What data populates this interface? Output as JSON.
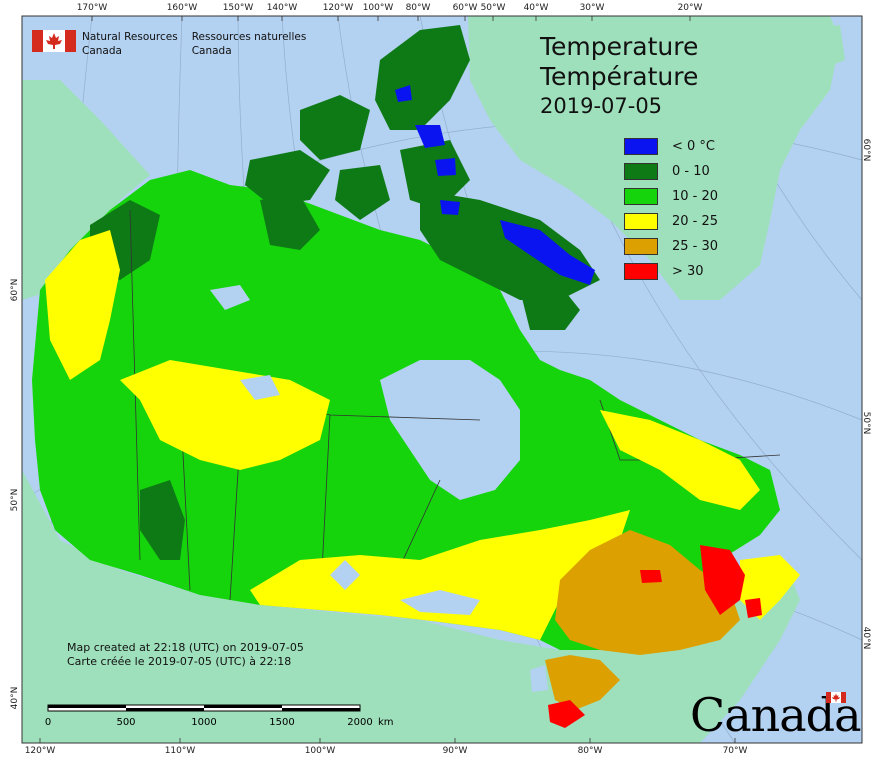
{
  "map": {
    "title_en": "Temperature",
    "title_fr": "Température",
    "date": "2019-07-05",
    "agency": {
      "en_line1": "Natural Resources",
      "en_line2": "Canada",
      "fr_line1": "Ressources naturelles",
      "fr_line2": "Canada"
    },
    "legend": [
      {
        "label": "< 0 °C",
        "color": "#0a14f0"
      },
      {
        "label": "0 - 10",
        "color": "#0e7a16"
      },
      {
        "label": "10 - 20",
        "color": "#15d40c"
      },
      {
        "label": "20 - 25",
        "color": "#ffff00"
      },
      {
        "label": "25 - 30",
        "color": "#dca000"
      },
      {
        "label": "> 30",
        "color": "#ff0000"
      }
    ],
    "credit_en": "Map created at 22:18 (UTC) on 2019-07-05",
    "credit_fr": "Carte créée le 2019-07-05 (UTC) à 22:18",
    "scale": {
      "labels": [
        "0",
        "500",
        "1000",
        "1500",
        "2000"
      ],
      "unit": "km"
    },
    "wordmark": "Canada",
    "graticule": {
      "top": [
        "170°W",
        "160°W",
        "150°W",
        "140°W",
        "120°W",
        "100°W",
        "80°W",
        "60°W",
        "50°W",
        "40°W",
        "30°W",
        "20°W"
      ],
      "bottom": [
        "120°W",
        "110°W",
        "100°W",
        "90°W",
        "80°W",
        "70°W"
      ],
      "left": [
        "60°N",
        "50°N",
        "40°N"
      ],
      "right": [
        "60°N",
        "50°N",
        "40°N"
      ]
    },
    "colors": {
      "ocean": "#b3d1f0",
      "foreign_land": "#9fe0bc",
      "land_10_20": "#15d40c",
      "land_0_10": "#0e7a16",
      "land_20_25": "#ffff00",
      "land_25_30": "#dca000",
      "land_gt30": "#ff0000",
      "land_lt0": "#0a14f0"
    }
  }
}
